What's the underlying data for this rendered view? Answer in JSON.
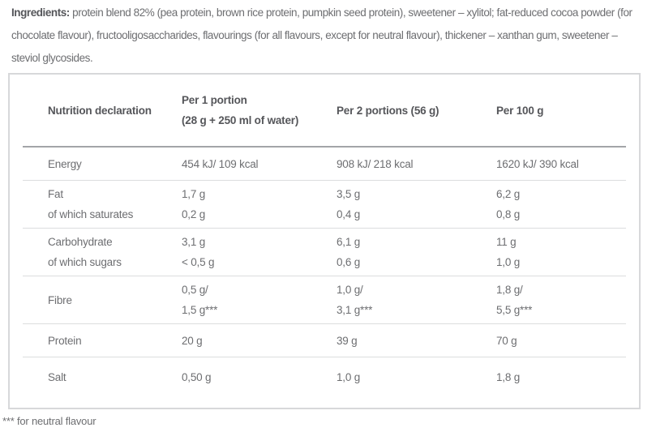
{
  "ingredients": {
    "label": "Ingredients:",
    "text": " protein blend 82% (pea protein, brown rice protein, pumpkin seed protein), sweetener – xylitol; fat-reduced cocoa powder (for chocolate flavour), fructooligosaccharides, flavourings (for all flavours, except for neutral flavour), thickener – xanthan gum, sweetener – steviol glycosides."
  },
  "table": {
    "columns": [
      {
        "key": "nutrition-declaration",
        "lines": [
          "Nutrition declaration"
        ]
      },
      {
        "key": "per-1-portion",
        "lines": [
          "Per 1 portion",
          "(28 g + 250 ml of water)"
        ]
      },
      {
        "key": "per-2-portions",
        "lines": [
          "Per 2 portions (56 g)"
        ]
      },
      {
        "key": "per-100-g",
        "lines": [
          "Per 100 g"
        ]
      }
    ],
    "rows": [
      {
        "id": "energy",
        "cells": [
          [
            "Energy"
          ],
          [
            "454 kJ/ 109 kcal"
          ],
          [
            "908 kJ/ 218 kcal"
          ],
          [
            "1620 kJ/ 390 kcal"
          ]
        ]
      },
      {
        "id": "fat",
        "cells": [
          [
            "Fat",
            "of which saturates"
          ],
          [
            "1,7 g",
            "0,2 g"
          ],
          [
            "3,5 g",
            "0,4 g"
          ],
          [
            "6,2 g",
            "0,8 g"
          ]
        ]
      },
      {
        "id": "carbohydrate",
        "cells": [
          [
            "Carbohydrate",
            "of which sugars"
          ],
          [
            "3,1 g",
            "< 0,5 g"
          ],
          [
            "6,1 g",
            "0,6 g"
          ],
          [
            "11 g",
            "1,0 g"
          ]
        ]
      },
      {
        "id": "fibre",
        "cells": [
          [
            "Fibre"
          ],
          [
            "0,5 g/",
            "1,5 g***"
          ],
          [
            "1,0 g/",
            "3,1 g***"
          ],
          [
            "1,8 g/",
            "5,5 g***"
          ]
        ]
      },
      {
        "id": "protein",
        "cells": [
          [
            "Protein"
          ],
          [
            "20 g"
          ],
          [
            "39 g"
          ],
          [
            "70 g"
          ]
        ]
      },
      {
        "id": "salt",
        "cells": [
          [
            "Salt"
          ],
          [
            "0,50 g"
          ],
          [
            "1,0 g"
          ],
          [
            "1,8 g"
          ]
        ]
      }
    ]
  },
  "footnote": "*** for neutral flavour",
  "colors": {
    "text_strong": "#55565a",
    "text_body": "#6d6e71",
    "table_border": "#d7d8da",
    "header_rule": "#a3a5a8",
    "row_rule": "#dcddde",
    "background": "#ffffff"
  }
}
